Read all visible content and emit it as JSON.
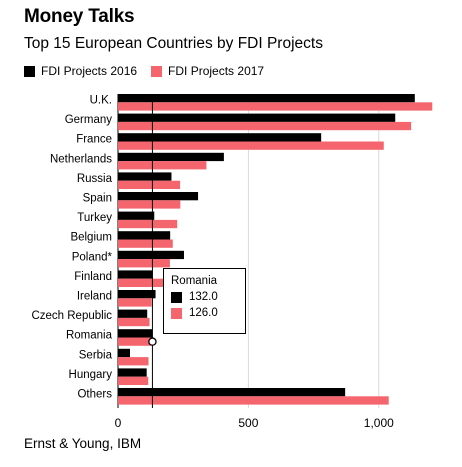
{
  "header": {
    "title": "Money Talks",
    "subtitle": "Top 15 European Countries by FDI Projects"
  },
  "legend": [
    {
      "label": "FDI Projects 2016",
      "color": "#000000"
    },
    {
      "label": "FDI Projects 2017",
      "color": "#f4656d"
    }
  ],
  "source": "Ernst & Young, IBM",
  "tooltip": {
    "country": "Romania",
    "value_2016": "132.0",
    "value_2017": "126.0"
  },
  "chart_data": {
    "type": "bar",
    "orientation": "horizontal",
    "title": "Top 15 European Countries by FDI Projects",
    "categories": [
      "U.K.",
      "Germany",
      "France",
      "Netherlands",
      "Russia",
      "Spain",
      "Turkey",
      "Belgium",
      "Poland*",
      "Finland",
      "Ireland",
      "Czech Republic",
      "Romania",
      "Serbia",
      "Hungary",
      "Others"
    ],
    "series": [
      {
        "name": "FDI Projects 2016",
        "color": "#000000",
        "values": [
          1138,
          1063,
          779,
          406,
          205,
          307,
          139,
          200,
          253,
          133,
          144,
          112,
          132,
          46,
          110,
          871
        ]
      },
      {
        "name": "FDI Projects 2017",
        "color": "#f4656d",
        "values": [
          1205,
          1124,
          1019,
          339,
          238,
          239,
          227,
          210,
          199,
          182,
          129,
          121,
          126,
          117,
          116,
          1038
        ]
      }
    ],
    "xlim": [
      0,
      1250
    ],
    "xticks": [
      0,
      500,
      1000
    ],
    "xtick_labels": [
      "0",
      "500",
      "1,000"
    ],
    "grid": true,
    "legend_position": "top-left",
    "highlight": {
      "category": "Romania",
      "value": 132
    }
  }
}
